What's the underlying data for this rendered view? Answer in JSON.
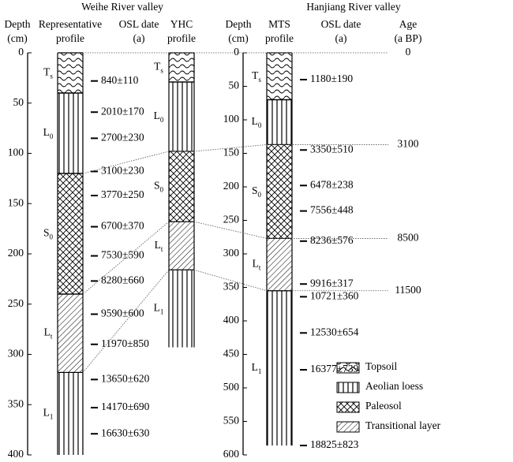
{
  "weihe": {
    "title": "Weihe River valley",
    "depth_axis": {
      "label": [
        "Depth",
        "(cm)"
      ],
      "lim": [
        0,
        400
      ],
      "ticks": [
        0,
        50,
        100,
        150,
        200,
        250,
        300,
        350,
        400
      ]
    },
    "profiles": [
      {
        "name": [
          "Representative",
          "profile"
        ],
        "layers": [
          {
            "label": {
              "symbol": "T",
              "sub": "s"
            },
            "pattern": "wave",
            "top": 0,
            "bottom": 40
          },
          {
            "label": {
              "symbol": "L",
              "sub": "0"
            },
            "pattern": "vertical",
            "top": 40,
            "bottom": 120
          },
          {
            "label": {
              "symbol": "S",
              "sub": "0"
            },
            "pattern": "cross",
            "top": 120,
            "bottom": 240
          },
          {
            "label": {
              "symbol": "L",
              "sub": "t"
            },
            "pattern": "diagonal",
            "top": 240,
            "bottom": 318
          },
          {
            "label": {
              "symbol": "L",
              "sub": "1"
            },
            "pattern": "vertical",
            "top": 318,
            "bottom": 400
          }
        ]
      },
      {
        "name": [
          "YHC",
          "profile"
        ],
        "layers": [
          {
            "label": {
              "symbol": "T",
              "sub": "s"
            },
            "pattern": "wave",
            "top": 0,
            "bottom": 29
          },
          {
            "label": {
              "symbol": "L",
              "sub": "0"
            },
            "pattern": "vertical",
            "top": 29,
            "bottom": 98
          },
          {
            "label": {
              "symbol": "S",
              "sub": "0"
            },
            "pattern": "cross",
            "top": 98,
            "bottom": 168
          },
          {
            "label": {
              "symbol": "L",
              "sub": "t"
            },
            "pattern": "diagonal",
            "top": 168,
            "bottom": 216
          },
          {
            "label": {
              "symbol": "L",
              "sub": "1"
            },
            "pattern": "vertical",
            "top": 216,
            "bottom": 293
          }
        ]
      }
    ],
    "osl": {
      "label": [
        "OSL date",
        "(a)"
      ],
      "dates": [
        {
          "depth": 28,
          "label": "840±110"
        },
        {
          "depth": 59,
          "label": "2010±170"
        },
        {
          "depth": 85,
          "label": "2700±230"
        },
        {
          "depth": 118,
          "label": "3100±230"
        },
        {
          "depth": 142,
          "label": "3770±250"
        },
        {
          "depth": 173,
          "label": "6700±370"
        },
        {
          "depth": 202,
          "label": "7530±590"
        },
        {
          "depth": 227,
          "label": "8280±660"
        },
        {
          "depth": 260,
          "label": "9590±600"
        },
        {
          "depth": 290,
          "label": "11970±850"
        },
        {
          "depth": 325,
          "label": "13650±620"
        },
        {
          "depth": 353,
          "label": "14170±690"
        },
        {
          "depth": 379,
          "label": "16630±630"
        }
      ]
    }
  },
  "hanjiang": {
    "title": "Hanjiang River valley",
    "depth_axis": {
      "label": [
        "Depth",
        "(cm)"
      ],
      "lim": [
        0,
        600
      ],
      "ticks": [
        0,
        50,
        100,
        150,
        200,
        250,
        300,
        350,
        400,
        450,
        500,
        550,
        600
      ]
    },
    "profile": {
      "name": [
        "MTS",
        "profile"
      ],
      "layers": [
        {
          "label": {
            "symbol": "T",
            "sub": "s"
          },
          "pattern": "wave",
          "top": 0,
          "bottom": 70
        },
        {
          "label": {
            "symbol": "L",
            "sub": "0"
          },
          "pattern": "vertical",
          "top": 70,
          "bottom": 137
        },
        {
          "label": {
            "symbol": "S",
            "sub": "0"
          },
          "pattern": "cross",
          "top": 137,
          "bottom": 277
        },
        {
          "label": {
            "symbol": "L",
            "sub": "t"
          },
          "pattern": "diagonal",
          "top": 277,
          "bottom": 355
        },
        {
          "label": {
            "symbol": "L",
            "sub": "1"
          },
          "pattern": "vertical",
          "top": 355,
          "bottom": 586
        }
      ]
    },
    "osl": {
      "label": [
        "OSL  date",
        "(a)"
      ],
      "dates": [
        {
          "depth": 40,
          "label": "1180±190"
        },
        {
          "depth": 145,
          "label": "3350±510"
        },
        {
          "depth": 198,
          "label": "6478±238"
        },
        {
          "depth": 236,
          "label": "7556±448"
        },
        {
          "depth": 281,
          "label": "8236±576"
        },
        {
          "depth": 345,
          "label": "9916±317"
        },
        {
          "depth": 364,
          "label": "10721±360"
        },
        {
          "depth": 418,
          "label": "12530±654"
        },
        {
          "depth": 473,
          "label": "16377±739"
        },
        {
          "depth": 586,
          "label": "18825±823"
        }
      ]
    },
    "age": {
      "label": [
        "Age",
        "(a BP)"
      ],
      "boundaries": [
        {
          "age": 0,
          "depths": [
            0,
            0,
            0
          ]
        },
        {
          "age": 3100,
          "depths": [
            120,
            98,
            137
          ]
        },
        {
          "age": 8500,
          "depths": [
            240,
            168,
            277
          ]
        },
        {
          "age": 11500,
          "depths": [
            318,
            216,
            355
          ]
        }
      ]
    }
  },
  "legend": [
    {
      "label": "Topsoil",
      "pattern": "wave"
    },
    {
      "label": "Aeolian loess",
      "pattern": "vertical"
    },
    {
      "label": "Paleosol",
      "pattern": "cross"
    },
    {
      "label": "Transitional layer",
      "pattern": "diagonal"
    }
  ]
}
